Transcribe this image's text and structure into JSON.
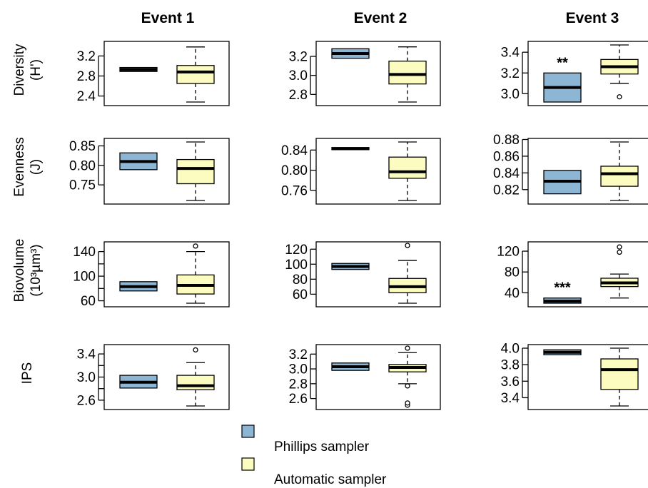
{
  "colors": {
    "phillips": "#8db6d4",
    "automatic": "#fcfcc0",
    "line": "#000000"
  },
  "legend": [
    {
      "label": "Phillips sampler",
      "color_key": "phillips"
    },
    {
      "label": "Automatic sampler",
      "color_key": "automatic"
    }
  ],
  "chart_data": {
    "type": "boxplot",
    "columns": [
      "Event 1",
      "Event 2",
      "Event 3"
    ],
    "groups": [
      "Phillips sampler",
      "Automatic sampler"
    ],
    "rows": [
      {
        "label_lines": [
          "Diversity",
          "(H')"
        ],
        "panels": [
          {
            "ylim": [
              2.28,
              3.42
            ],
            "ticks": [
              2.4,
              2.8,
              3.2
            ],
            "tick_labels": [
              "2.4",
              "2.8",
              "3.2"
            ],
            "boxes": [
              {
                "q1": 2.89,
                "median": 2.93,
                "q3": 2.97,
                "low": 2.89,
                "high": 2.97,
                "outliers": []
              },
              {
                "q1": 2.65,
                "median": 2.88,
                "q3": 3.01,
                "low": 2.28,
                "high": 3.38,
                "outliers": []
              }
            ],
            "annotation": ""
          },
          {
            "ylim": [
              2.72,
              3.32
            ],
            "ticks": [
              2.8,
              3.0,
              3.2
            ],
            "tick_labels": [
              "2.8",
              "3.0",
              "3.2"
            ],
            "boxes": [
              {
                "q1": 3.18,
                "median": 3.23,
                "q3": 3.28,
                "low": 3.18,
                "high": 3.28,
                "outliers": []
              },
              {
                "q1": 2.91,
                "median": 3.01,
                "q3": 3.15,
                "low": 2.72,
                "high": 3.3,
                "outliers": []
              }
            ],
            "annotation": ""
          },
          {
            "ylim": [
              2.92,
              3.47
            ],
            "ticks": [
              3.0,
              3.2,
              3.4
            ],
            "tick_labels": [
              "3.0",
              "3.2",
              "3.4"
            ],
            "boxes": [
              {
                "q1": 2.92,
                "median": 3.06,
                "q3": 3.2,
                "low": 2.92,
                "high": 3.2,
                "outliers": []
              },
              {
                "q1": 3.19,
                "median": 3.26,
                "q3": 3.33,
                "low": 3.1,
                "high": 3.47,
                "outliers": [
                  2.97
                ]
              }
            ],
            "annotation": "**"
          }
        ]
      },
      {
        "label_lines": [
          "Evenness",
          "(J)"
        ],
        "panels": [
          {
            "ylim": [
              0.71,
              0.86
            ],
            "ticks": [
              0.75,
              0.8,
              0.85
            ],
            "tick_labels": [
              "0.75",
              "0.80",
              "0.85"
            ],
            "boxes": [
              {
                "q1": 0.789,
                "median": 0.81,
                "q3": 0.832,
                "low": 0.789,
                "high": 0.832,
                "outliers": []
              },
              {
                "q1": 0.753,
                "median": 0.792,
                "q3": 0.815,
                "low": 0.71,
                "high": 0.86,
                "outliers": []
              }
            ],
            "annotation": ""
          },
          {
            "ylim": [
              0.74,
              0.856
            ],
            "ticks": [
              0.76,
              0.8,
              0.84
            ],
            "tick_labels": [
              "0.76",
              "0.80",
              "0.84"
            ],
            "boxes": [
              {
                "q1": 0.842,
                "median": 0.843,
                "q3": 0.845,
                "low": 0.842,
                "high": 0.845,
                "outliers": []
              },
              {
                "q1": 0.784,
                "median": 0.797,
                "q3": 0.826,
                "low": 0.74,
                "high": 0.856,
                "outliers": []
              }
            ],
            "annotation": ""
          },
          {
            "ylim": [
              0.807,
              0.877
            ],
            "ticks": [
              0.82,
              0.84,
              0.86,
              0.88
            ],
            "tick_labels": [
              "0.82",
              "0.84",
              "0.86",
              "0.88"
            ],
            "boxes": [
              {
                "q1": 0.815,
                "median": 0.83,
                "q3": 0.843,
                "low": 0.815,
                "high": 0.843,
                "outliers": []
              },
              {
                "q1": 0.824,
                "median": 0.839,
                "q3": 0.848,
                "low": 0.807,
                "high": 0.877,
                "outliers": []
              }
            ],
            "annotation": ""
          }
        ]
      },
      {
        "label_lines": [
          "Biovolume",
          "(10³µm³)"
        ],
        "panels": [
          {
            "ylim": [
              56,
              150
            ],
            "ticks": [
              60,
              80,
              100,
              120,
              140
            ],
            "tick_labels": [
              "60",
              "",
              "100",
              "",
              "140"
            ],
            "boxes": [
              {
                "q1": 76,
                "median": 83,
                "q3": 91,
                "low": 76,
                "high": 91,
                "outliers": []
              },
              {
                "q1": 71,
                "median": 85,
                "q3": 102,
                "low": 56,
                "high": 140,
                "outliers": [
                  149
                ]
              }
            ],
            "annotation": ""
          },
          {
            "ylim": [
              48,
              125
            ],
            "ticks": [
              60,
              80,
              100,
              120
            ],
            "tick_labels": [
              "60",
              "80",
              "100",
              "120"
            ],
            "boxes": [
              {
                "q1": 93,
                "median": 97,
                "q3": 101,
                "low": 93,
                "high": 101,
                "outliers": []
              },
              {
                "q1": 62,
                "median": 70,
                "q3": 81,
                "low": 48,
                "high": 105,
                "outliers": [
                  125
                ]
              }
            ],
            "annotation": ""
          },
          {
            "ylim": [
              20,
              131
            ],
            "ticks": [
              40,
              80,
              120
            ],
            "tick_labels": [
              "40",
              "80",
              "120"
            ],
            "boxes": [
              {
                "q1": 20,
                "median": 24,
                "q3": 30,
                "low": 20,
                "high": 30,
                "outliers": []
              },
              {
                "q1": 52,
                "median": 59,
                "q3": 68,
                "low": 30,
                "high": 76,
                "outliers": [
                  118,
                  128
                ]
              }
            ],
            "annotation": "***"
          }
        ]
      },
      {
        "label_lines": [
          "IPS"
        ],
        "panels": [
          {
            "ylim": [
              2.5,
              3.5
            ],
            "ticks": [
              2.6,
              2.8,
              3.0,
              3.2,
              3.4
            ],
            "tick_labels": [
              "2.6",
              "",
              "3.0",
              "",
              "3.4"
            ],
            "boxes": [
              {
                "q1": 2.81,
                "median": 2.91,
                "q3": 3.03,
                "low": 2.81,
                "high": 3.03,
                "outliers": []
              },
              {
                "q1": 2.78,
                "median": 2.85,
                "q3": 3.03,
                "low": 2.5,
                "high": 3.25,
                "outliers": [
                  3.47
                ]
              }
            ],
            "annotation": ""
          },
          {
            "ylim": [
              2.5,
              3.28
            ],
            "ticks": [
              2.6,
              2.8,
              3.0,
              3.2
            ],
            "tick_labels": [
              "2.6",
              "2.8",
              "3.0",
              "3.2"
            ],
            "boxes": [
              {
                "q1": 2.98,
                "median": 3.03,
                "q3": 3.08,
                "low": 2.98,
                "high": 3.08,
                "outliers": []
              },
              {
                "q1": 2.96,
                "median": 3.02,
                "q3": 3.06,
                "low": 2.8,
                "high": 3.22,
                "outliers": [
                  3.28,
                  2.77,
                  2.51,
                  2.54
                ]
              }
            ],
            "annotation": ""
          },
          {
            "ylim": [
              3.3,
              4.0
            ],
            "ticks": [
              3.4,
              3.6,
              3.8,
              4.0
            ],
            "tick_labels": [
              "3.4",
              "3.6",
              "3.8",
              "4.0"
            ],
            "boxes": [
              {
                "q1": 3.92,
                "median": 3.95,
                "q3": 3.98,
                "low": 3.92,
                "high": 3.98,
                "outliers": []
              },
              {
                "q1": 3.5,
                "median": 3.74,
                "q3": 3.87,
                "low": 3.3,
                "high": 4.0,
                "outliers": []
              }
            ],
            "annotation": ""
          }
        ]
      }
    ]
  }
}
